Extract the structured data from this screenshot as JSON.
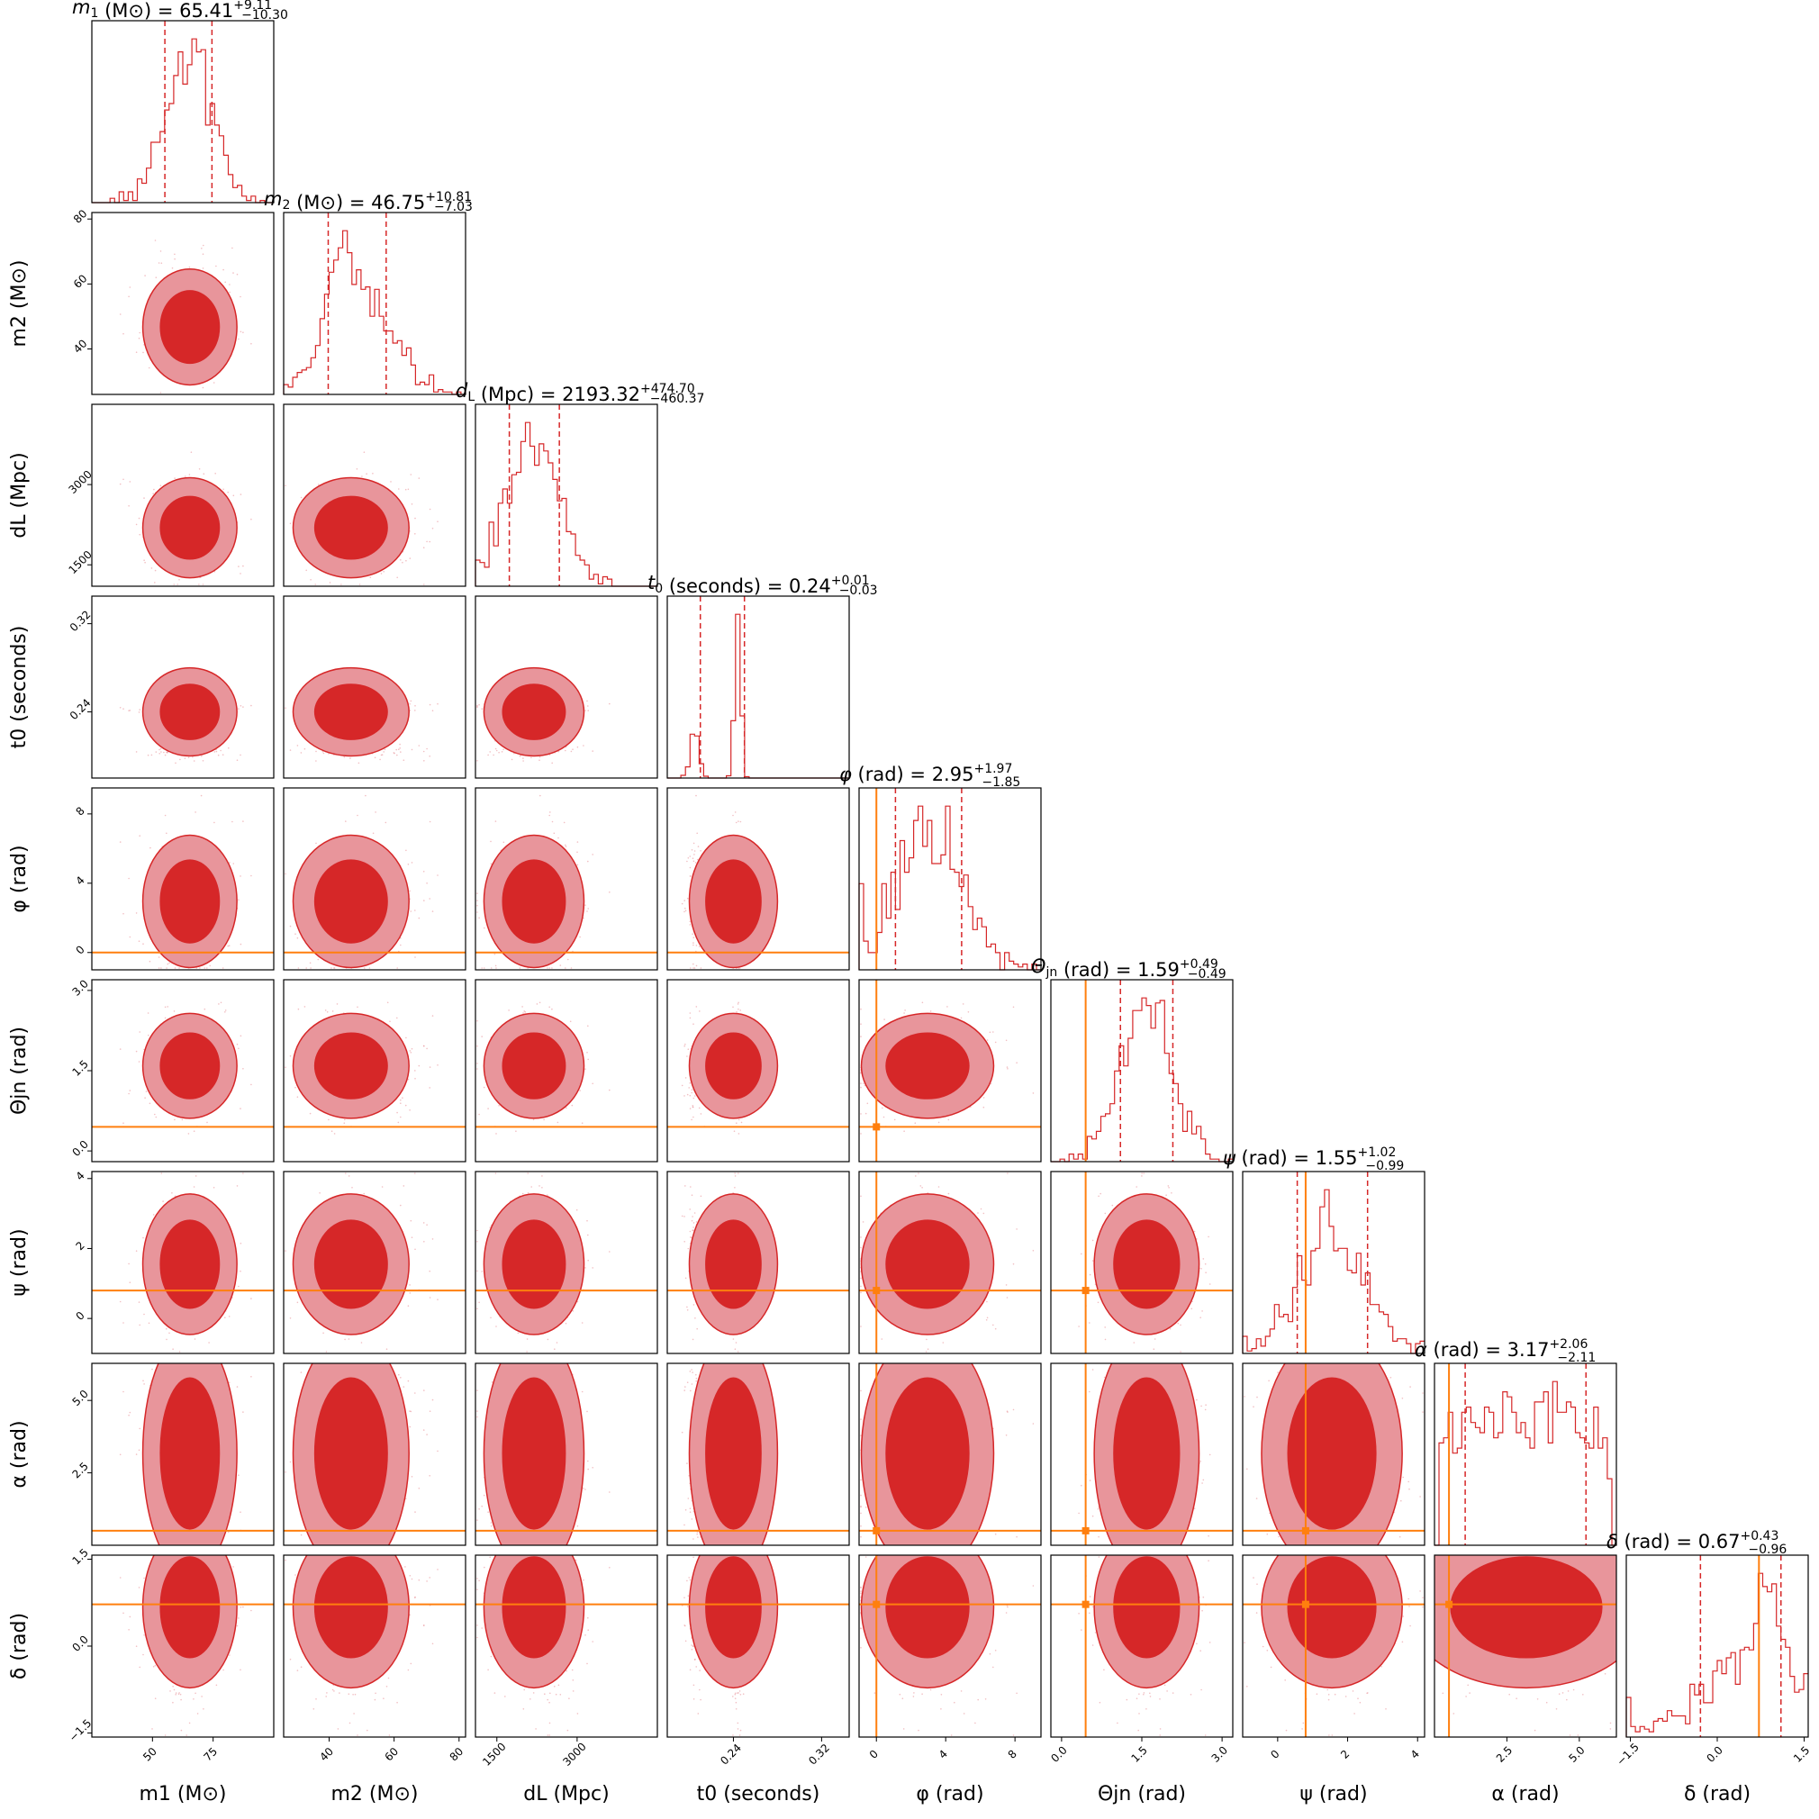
{
  "chart_data": {
    "type": "corner",
    "colors": {
      "posterior": "#d62728",
      "posterior_light": "#e8959b",
      "injection": "#ff7f0e"
    },
    "params": [
      {
        "key": "m1",
        "label": "m1 (M⊙)",
        "sym": "m",
        "sub": "1",
        "unit": "(M⊙)",
        "range": [
          25,
          100
        ],
        "median": 65.41,
        "plus": "9.11",
        "minus": "10.30",
        "ticks": [
          50,
          75
        ],
        "tick_labels": [
          "50",
          "75"
        ],
        "injection": null
      },
      {
        "key": "m2",
        "label": "m2 (M⊙)",
        "sym": "m",
        "sub": "2",
        "unit": "(M⊙)",
        "range": [
          26,
          82
        ],
        "median": 46.75,
        "plus": "10.81",
        "minus": "7.03",
        "ticks": [
          40,
          60,
          80
        ],
        "tick_labels": [
          "40",
          "60",
          "80"
        ],
        "injection": null
      },
      {
        "key": "dL",
        "label": "dL (Mpc)",
        "sym": "d",
        "sub": "L",
        "unit": "(Mpc)",
        "range": [
          1100,
          4500
        ],
        "median": 2193.32,
        "plus": "474.70",
        "minus": "460.37",
        "ticks": [
          1500,
          3000
        ],
        "tick_labels": [
          "1500",
          "3000"
        ],
        "injection": null
      },
      {
        "key": "t0",
        "label": "t0 (seconds)",
        "sym": "t",
        "sub": "0",
        "unit": "(seconds)",
        "range": [
          0.18,
          0.345
        ],
        "median": 0.24,
        "plus": "0.01",
        "minus": "0.03",
        "ticks": [
          0.24,
          0.32
        ],
        "tick_labels": [
          "0.24",
          "0.32"
        ],
        "injection": null
      },
      {
        "key": "phi",
        "label": "φ (rad)",
        "sym": "φ",
        "sub": "",
        "unit": "(rad)",
        "range": [
          -1,
          9.5
        ],
        "median": 2.95,
        "plus": "1.97",
        "minus": "1.85",
        "ticks": [
          0,
          4,
          8
        ],
        "tick_labels": [
          "0",
          "4",
          "8"
        ],
        "injection": 0
      },
      {
        "key": "theta_jn",
        "label": "Θjn (rad)",
        "sym": "Θ",
        "sub": "jn",
        "unit": "(rad)",
        "range": [
          -0.2,
          3.2
        ],
        "median": 1.59,
        "plus": "0.49",
        "minus": "0.49",
        "ticks": [
          0.0,
          1.5,
          3.0
        ],
        "tick_labels": [
          "0.0",
          "1.5",
          "3.0"
        ],
        "injection": 0.45
      },
      {
        "key": "psi",
        "label": "ψ (rad)",
        "sym": "ψ",
        "sub": "",
        "unit": "(rad)",
        "range": [
          -1,
          4.2
        ],
        "median": 1.55,
        "plus": "1.02",
        "minus": "0.99",
        "ticks": [
          0,
          2,
          4
        ],
        "tick_labels": [
          "0",
          "2",
          "4"
        ],
        "injection": 0.8
      },
      {
        "key": "alpha",
        "label": "α (rad)",
        "sym": "α",
        "sub": "",
        "unit": "(rad)",
        "range": [
          0,
          6.28
        ],
        "median": 3.17,
        "plus": "2.06",
        "minus": "2.11",
        "ticks": [
          2.5,
          5.0
        ],
        "tick_labels": [
          "2.5",
          "5.0"
        ],
        "injection": 0.5
      },
      {
        "key": "delta",
        "label": "δ (rad)",
        "sym": "δ",
        "sub": "",
        "unit": "(rad)",
        "range": [
          -1.57,
          1.57
        ],
        "median": 0.67,
        "plus": "0.43",
        "minus": "0.96",
        "ticks": [
          -1.5,
          0.0,
          1.5
        ],
        "tick_labels": [
          "−1.5",
          "0.0",
          "1.5"
        ],
        "injection": 0.72
      }
    ]
  }
}
